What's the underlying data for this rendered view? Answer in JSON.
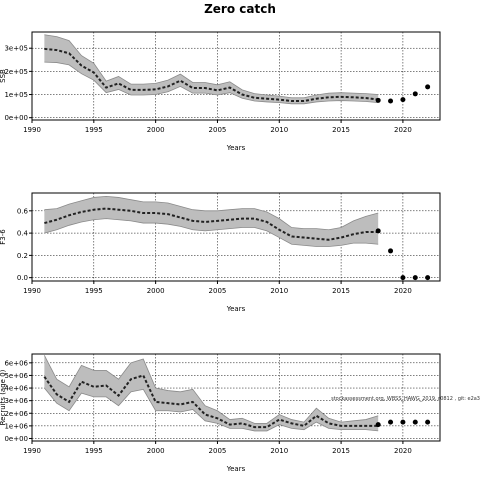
{
  "page": {
    "title": "Zero catch"
  },
  "chart_data": [
    {
      "id": "ssb",
      "type": "line",
      "ylabel": "SSB",
      "xlabel": "Years",
      "xlim": [
        1990,
        2023
      ],
      "xticks": [
        1990,
        1995,
        2000,
        2005,
        2010,
        2015,
        2020
      ],
      "ylim": [
        -10000,
        370000
      ],
      "yticks": [
        0,
        100000,
        200000,
        300000
      ],
      "ytick_labels": [
        "0e+00",
        "1e+05",
        "2e+05",
        "3e+05"
      ],
      "grid": true,
      "colors": {
        "band": "#bdbdbd",
        "band_edge": "#8a8a8a",
        "line": "#222222",
        "points": "#000000"
      },
      "x": [
        1991,
        1992,
        1993,
        1994,
        1995,
        1996,
        1997,
        1998,
        1999,
        2000,
        2001,
        2002,
        2003,
        2004,
        2005,
        2006,
        2007,
        2008,
        2009,
        2010,
        2011,
        2012,
        2013,
        2014,
        2015,
        2016,
        2017,
        2018
      ],
      "series": [
        {
          "role": "estimate",
          "values": [
            297000,
            292000,
            278000,
            225000,
            195000,
            130000,
            148000,
            120000,
            120000,
            122000,
            135000,
            160000,
            128000,
            128000,
            118000,
            130000,
            100000,
            86000,
            82000,
            78000,
            72000,
            72000,
            82000,
            88000,
            90000,
            88000,
            85000,
            78000
          ]
        },
        {
          "role": "upper",
          "values": [
            358000,
            350000,
            333000,
            268000,
            235000,
            158000,
            178000,
            145000,
            145000,
            148000,
            162000,
            188000,
            152000,
            152000,
            142000,
            155000,
            120000,
            104000,
            98000,
            93000,
            86000,
            86000,
            98000,
            106000,
            108000,
            106000,
            104000,
            100000
          ]
        },
        {
          "role": "lower",
          "values": [
            240000,
            238000,
            228000,
            190000,
            162000,
            108000,
            122000,
            98000,
            98000,
            100000,
            112000,
            135000,
            106000,
            106000,
            98000,
            108000,
            84000,
            72000,
            68000,
            65000,
            60000,
            60000,
            68000,
            72000,
            74000,
            72000,
            70000,
            65000
          ]
        }
      ],
      "forecast_points": {
        "x": [
          2018,
          2019,
          2020,
          2021,
          2022
        ],
        "y": [
          75000,
          72000,
          78000,
          103000,
          133000
        ]
      }
    },
    {
      "id": "f",
      "type": "line",
      "ylabel": "F3-6",
      "xlabel": "Years",
      "xlim": [
        1990,
        2023
      ],
      "xticks": [
        1990,
        1995,
        2000,
        2005,
        2010,
        2015,
        2020
      ],
      "ylim": [
        -0.03,
        0.76
      ],
      "yticks": [
        0.0,
        0.2,
        0.4,
        0.6
      ],
      "ytick_labels": [
        "0.0",
        "0.2",
        "0.4",
        "0.6"
      ],
      "grid": true,
      "colors": {
        "band": "#bdbdbd",
        "band_edge": "#8a8a8a",
        "line": "#222222",
        "points": "#000000"
      },
      "x": [
        1991,
        1992,
        1993,
        1994,
        1995,
        1996,
        1997,
        1998,
        1999,
        2000,
        2001,
        2002,
        2003,
        2004,
        2005,
        2006,
        2007,
        2008,
        2009,
        2010,
        2011,
        2012,
        2013,
        2014,
        2015,
        2016,
        2017,
        2018
      ],
      "series": [
        {
          "role": "estimate",
          "values": [
            0.49,
            0.52,
            0.56,
            0.59,
            0.61,
            0.62,
            0.61,
            0.6,
            0.58,
            0.58,
            0.57,
            0.54,
            0.51,
            0.5,
            0.51,
            0.52,
            0.53,
            0.53,
            0.5,
            0.43,
            0.37,
            0.36,
            0.35,
            0.34,
            0.36,
            0.39,
            0.41,
            0.41
          ]
        },
        {
          "role": "upper",
          "values": [
            0.61,
            0.62,
            0.66,
            0.69,
            0.72,
            0.73,
            0.72,
            0.7,
            0.68,
            0.68,
            0.67,
            0.64,
            0.61,
            0.6,
            0.6,
            0.61,
            0.62,
            0.62,
            0.59,
            0.53,
            0.45,
            0.44,
            0.44,
            0.43,
            0.45,
            0.51,
            0.55,
            0.58
          ]
        },
        {
          "role": "lower",
          "values": [
            0.4,
            0.43,
            0.47,
            0.5,
            0.52,
            0.53,
            0.52,
            0.51,
            0.49,
            0.49,
            0.48,
            0.46,
            0.43,
            0.42,
            0.43,
            0.44,
            0.45,
            0.45,
            0.42,
            0.36,
            0.3,
            0.29,
            0.28,
            0.28,
            0.29,
            0.31,
            0.31,
            0.3
          ]
        }
      ],
      "forecast_points": {
        "x": [
          2018,
          2019,
          2020,
          2021,
          2022
        ],
        "y": [
          0.42,
          0.24,
          0.0,
          0.0,
          0.0
        ]
      }
    },
    {
      "id": "rec",
      "type": "line",
      "ylabel": "Recruits (age 0)",
      "xlabel": "Years",
      "xlim": [
        1990,
        2023
      ],
      "xticks": [
        1990,
        1995,
        2000,
        2005,
        2010,
        2015,
        2020
      ],
      "ylim": [
        -200000,
        6700000
      ],
      "yticks": [
        0,
        1000000,
        2000000,
        3000000,
        4000000,
        5000000,
        6000000
      ],
      "ytick_labels": [
        "0e+00",
        "1e+06",
        "2e+06",
        "3e+06",
        "4e+06",
        "5e+06",
        "6e+06"
      ],
      "grid": true,
      "colors": {
        "band": "#bdbdbd",
        "band_edge": "#8a8a8a",
        "line": "#222222",
        "points": "#000000"
      },
      "x": [
        1991,
        1992,
        1993,
        1994,
        1995,
        1996,
        1997,
        1998,
        1999,
        2000,
        2001,
        2002,
        2003,
        2004,
        2005,
        2006,
        2007,
        2008,
        2009,
        2010,
        2011,
        2012,
        2013,
        2014,
        2015,
        2016,
        2017,
        2018
      ],
      "series": [
        {
          "role": "estimate",
          "values": [
            4900000,
            3500000,
            2900000,
            4500000,
            4100000,
            4200000,
            3400000,
            4700000,
            5000000,
            2900000,
            2800000,
            2700000,
            2900000,
            1900000,
            1600000,
            1100000,
            1200000,
            900000,
            900000,
            1500000,
            1200000,
            1000000,
            1800000,
            1200000,
            1000000,
            1000000,
            1000000,
            1000000
          ]
        },
        {
          "role": "upper",
          "values": [
            6600000,
            4700000,
            4100000,
            5800000,
            5400000,
            5400000,
            4700000,
            6000000,
            6300000,
            4000000,
            3800000,
            3700000,
            3900000,
            2600000,
            2200000,
            1500000,
            1600000,
            1200000,
            1200000,
            1900000,
            1500000,
            1300000,
            2400000,
            1600000,
            1300000,
            1400000,
            1500000,
            1800000
          ]
        },
        {
          "role": "lower",
          "values": [
            4000000,
            2800000,
            2200000,
            3600000,
            3300000,
            3300000,
            2600000,
            3700000,
            3900000,
            2200000,
            2200000,
            2100000,
            2300000,
            1400000,
            1200000,
            800000,
            800000,
            600000,
            600000,
            1100000,
            800000,
            700000,
            1300000,
            800000,
            700000,
            700000,
            700000,
            600000
          ]
        }
      ],
      "forecast_points": {
        "x": [
          2018,
          2019,
          2020,
          2021,
          2022
        ],
        "y": [
          1100000,
          1300000,
          1300000,
          1300000,
          1300000
        ]
      },
      "annotation": "stockassessment.org, WBSS_HAWG_2019, r0812 , git: e2a3"
    }
  ]
}
